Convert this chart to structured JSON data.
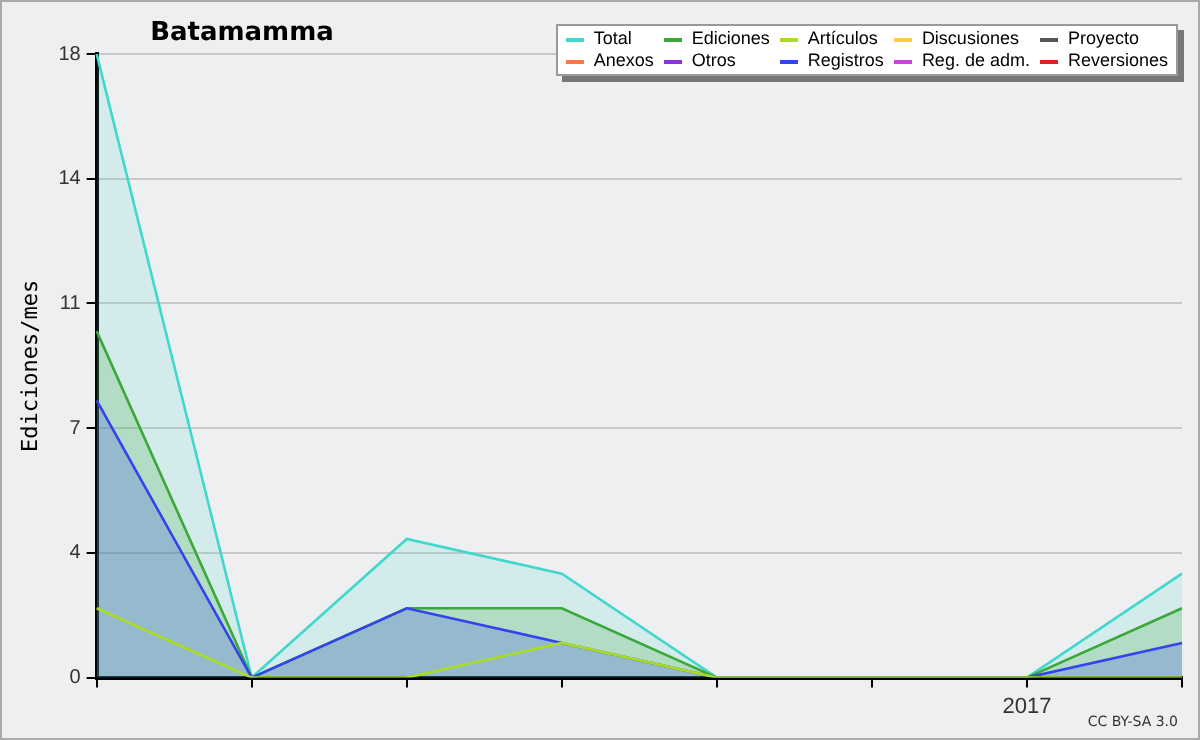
{
  "chart_data": {
    "type": "area",
    "title": "Batamamma",
    "ylabel": "Ediciones/mes",
    "categories": [
      null,
      null,
      null,
      null,
      null,
      null,
      "2017",
      null
    ],
    "ylim": [
      0,
      18
    ],
    "yticks": [
      0,
      {
        "value": 3.6,
        "label": "4"
      },
      {
        "value": 7.2,
        "label": "7"
      },
      {
        "value": 10.8,
        "label": "11"
      },
      {
        "value": 14.4,
        "label": "14"
      },
      18
    ],
    "grid": "y",
    "legend": "top right",
    "annotations": [
      "CC BY-SA 3.0"
    ],
    "series": [
      {
        "name": "Total",
        "color": "#40d8cc",
        "values": [
          18,
          0,
          4,
          3,
          0,
          0,
          0,
          3
        ]
      },
      {
        "name": "Ediciones",
        "color": "#3aa83a",
        "values": [
          10,
          0,
          2,
          2,
          0,
          0,
          0,
          2
        ]
      },
      {
        "name": "Artículos",
        "type": "line",
        "color": "#aadd22",
        "values": [
          2,
          0,
          0,
          1,
          0,
          0,
          0,
          0
        ]
      },
      {
        "name": "Discusiones",
        "color": "#ffcc44",
        "values": [
          null,
          null,
          null,
          null,
          null,
          null,
          null,
          null
        ]
      },
      {
        "name": "Proyecto",
        "color": "#555555",
        "values": [
          null,
          null,
          null,
          null,
          null,
          null,
          null,
          null
        ]
      },
      {
        "name": "Anexos",
        "color": "#ff7744",
        "values": [
          null,
          null,
          null,
          null,
          null,
          null,
          null,
          null
        ]
      },
      {
        "name": "Otros",
        "color": "#8833dd",
        "values": [
          null,
          null,
          null,
          null,
          null,
          null,
          null,
          null
        ]
      },
      {
        "name": "Registros",
        "color": "#3344ee",
        "values": [
          8,
          0,
          2,
          1,
          0,
          0,
          0,
          1
        ]
      },
      {
        "name": "Reg. de adm.",
        "color": "#cc44dd",
        "values": [
          null,
          null,
          null,
          null,
          null,
          null,
          null,
          null
        ]
      },
      {
        "name": "Reversiones",
        "color": "#dd2222",
        "values": [
          null,
          null,
          null,
          null,
          null,
          null,
          null,
          null
        ]
      }
    ]
  }
}
